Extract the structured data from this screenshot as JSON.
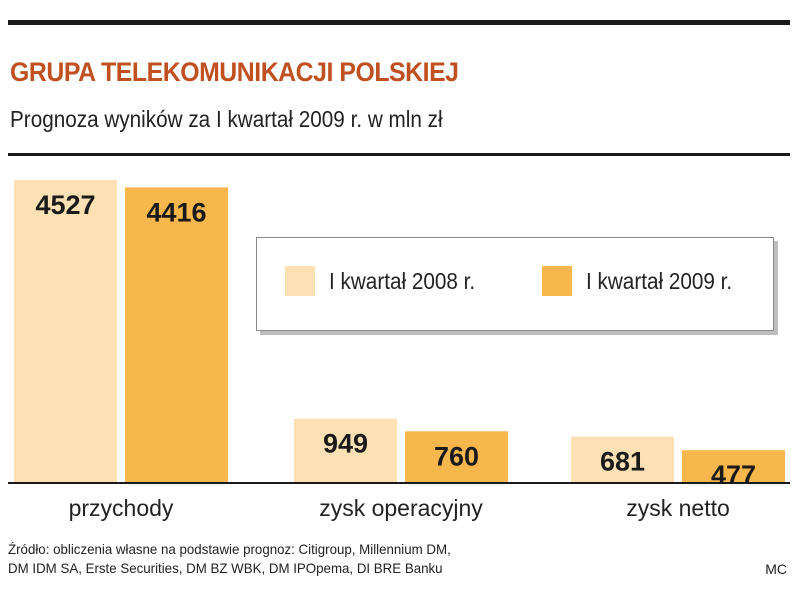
{
  "title": "GRUPA TELEKOMUNIKACJI POLSKIEJ",
  "subtitle": "Prognoza wyników za I kwartał 2009 r. w mln zł",
  "source_lines": [
    "Źródło: obliczenia własne na podstawie prognoz: Citigroup, Millennium DM,",
    "DM IDM SA, Erste Securities, DM BZ WBK, DM IPOpema, DI BRE Banku"
  ],
  "credit": "MC",
  "colors": {
    "series_2008": "#fde0b3",
    "series_2009": "#f8b74d",
    "title": "#c0501f"
  },
  "chart_data": {
    "type": "bar",
    "categories": [
      "przychody",
      "zysk operacyjny",
      "zysk netto"
    ],
    "series": [
      {
        "name": "I kwartał 2008 r.",
        "values": [
          4527,
          949,
          681
        ]
      },
      {
        "name": "I kwartał 2009 r.",
        "values": [
          4416,
          760,
          477
        ]
      }
    ],
    "ylim": [
      0,
      4527
    ],
    "grid": false,
    "legend": "center-right",
    "data_labels": true
  }
}
